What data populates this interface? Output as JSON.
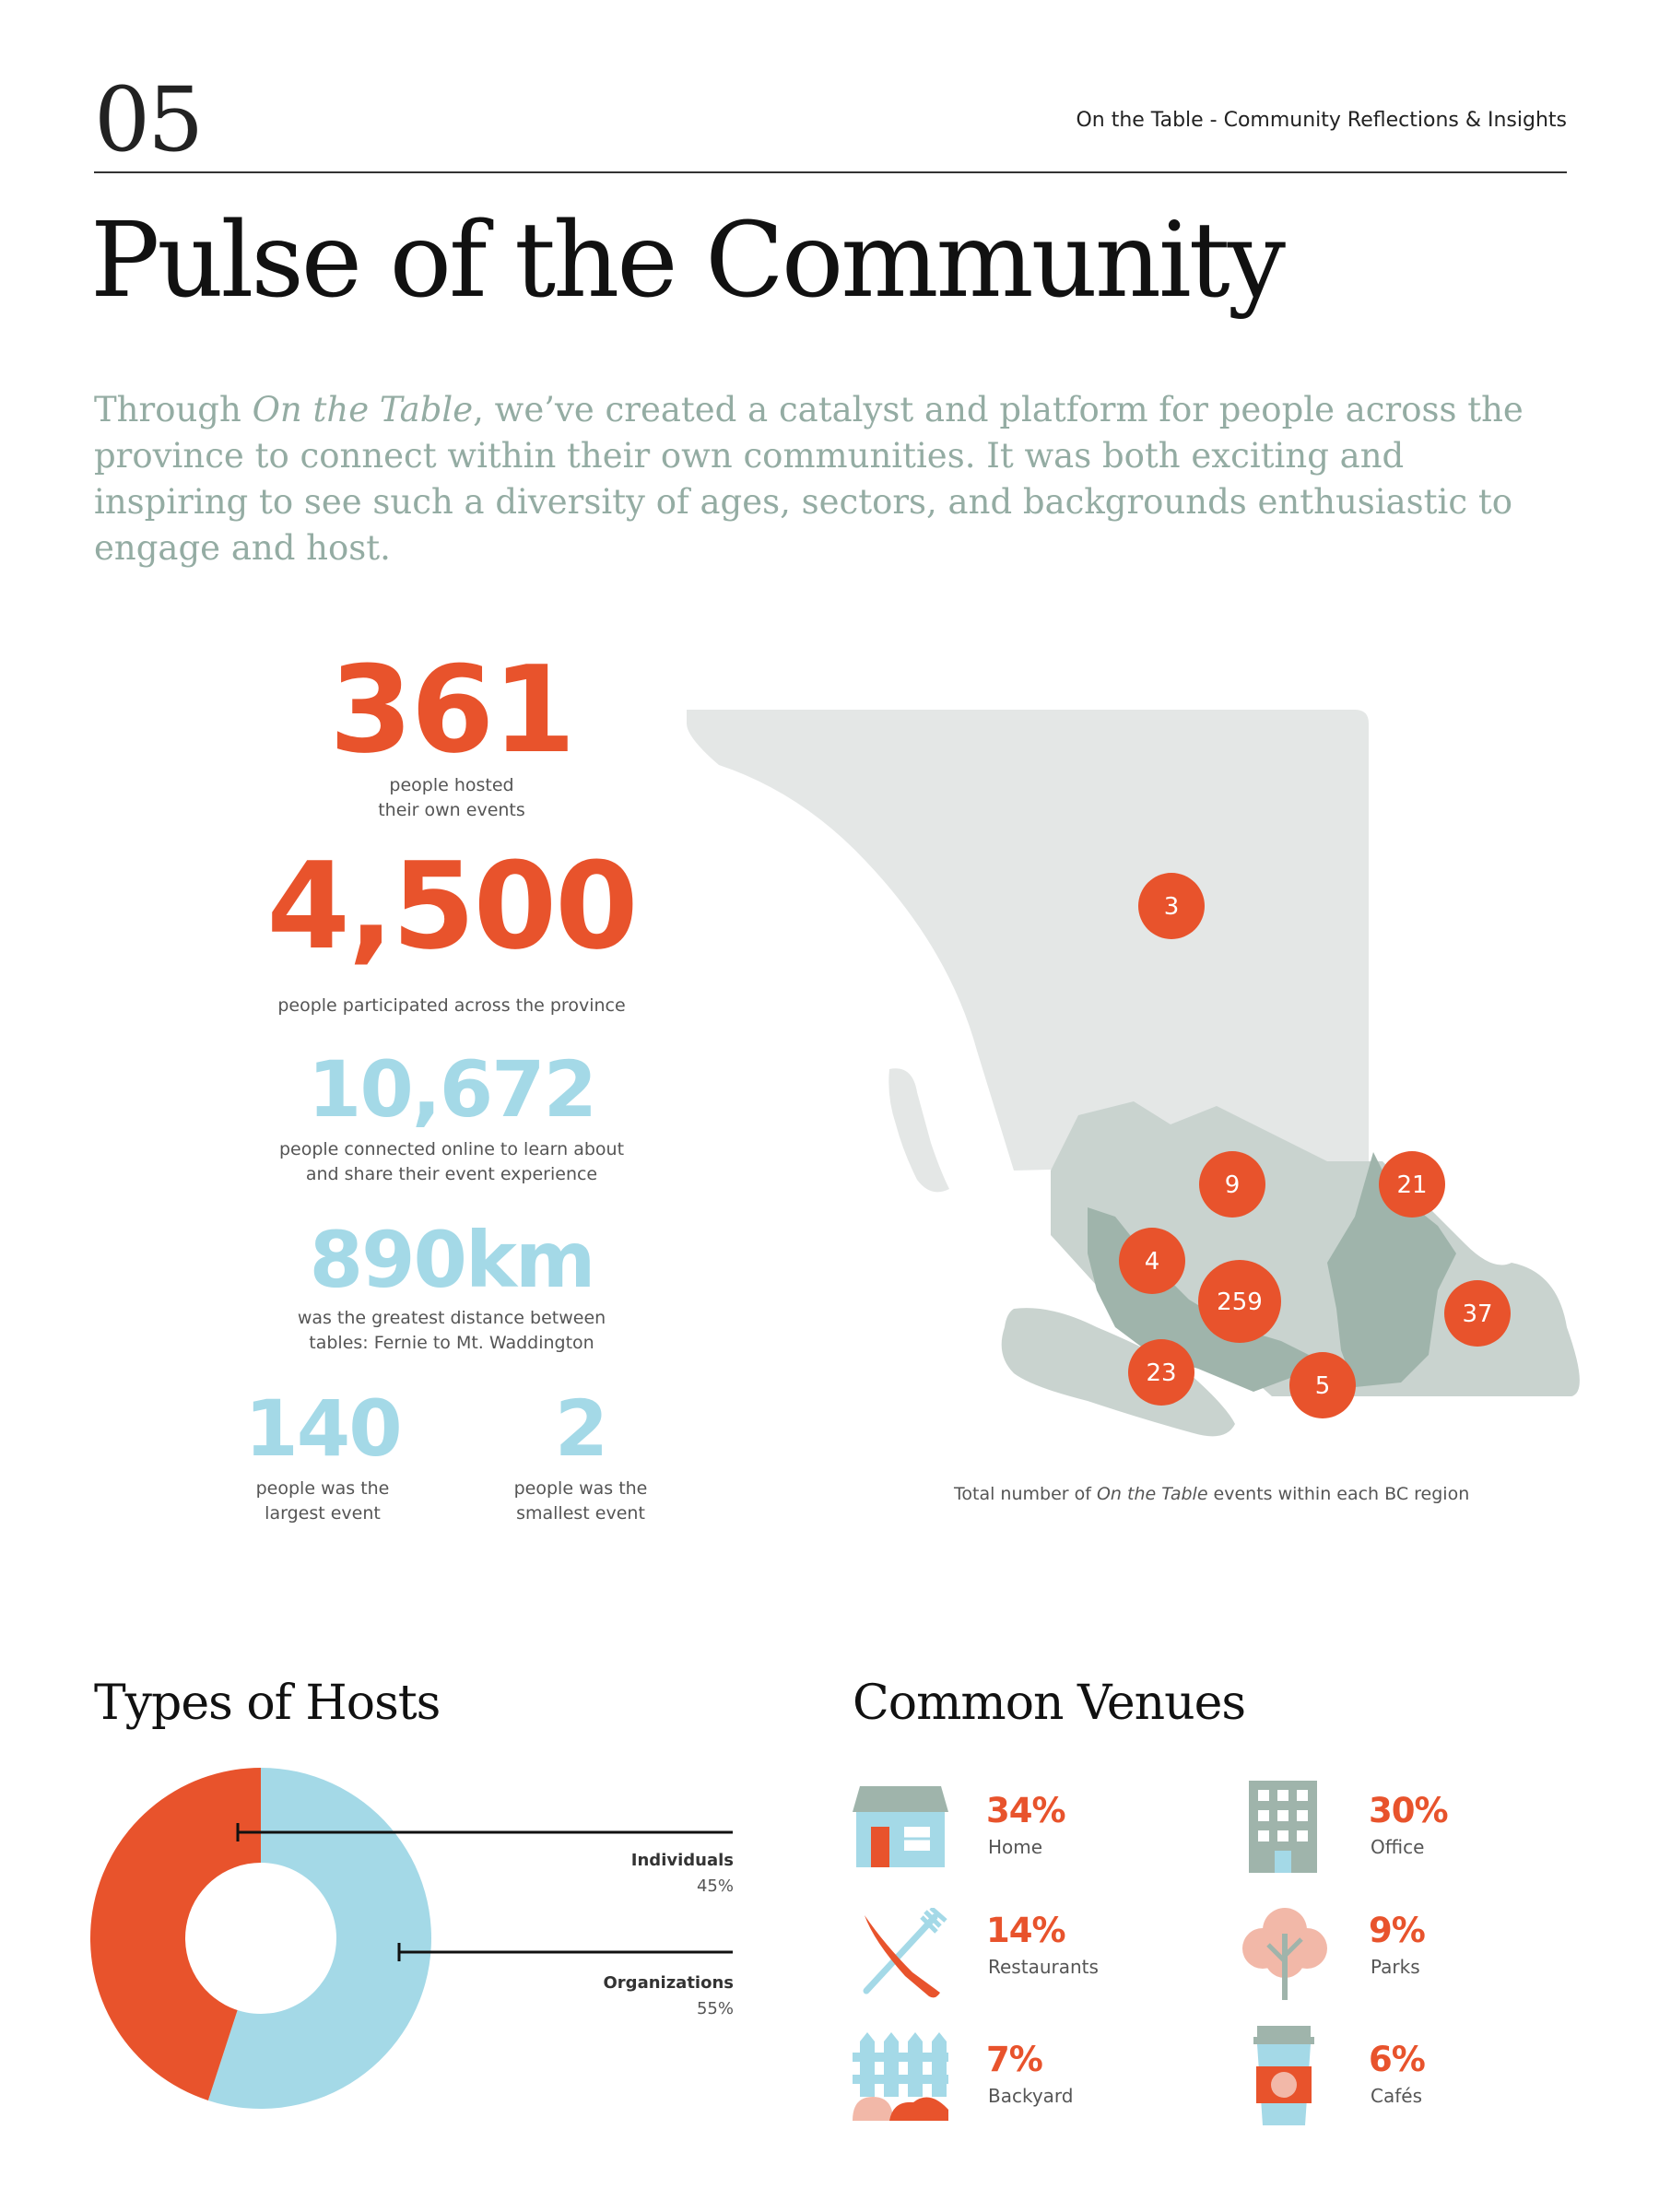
{
  "header": {
    "page_number": "05",
    "running_head": "On the Table - Community Reflections & Insights"
  },
  "title": "Pulse of the Community",
  "intro": {
    "before": "Through ",
    "italic": "On the Table",
    "after": ", we’ve created a catalyst and platform for people across the province to connect within their own communities. It was both exciting and inspiring to see such a diversity of ages, sectors, and backgrounds enthusiastic to engage and host."
  },
  "stats": {
    "hosted": {
      "value": "361",
      "label_line1": "people hosted",
      "label_line2": "their own events"
    },
    "participated": {
      "value": "4,500",
      "label_line1": "people participated across the province"
    },
    "online": {
      "value": "10,672",
      "label_line1": "people connected online to learn about",
      "label_line2": "and share their event experience"
    },
    "distance": {
      "value": "890km",
      "label_line1": "was the greatest distance between",
      "label_line2": "tables: Fernie to Mt. Waddington"
    },
    "largest": {
      "value": "140",
      "label_line1": "people was the",
      "label_line2": "largest event"
    },
    "smallest": {
      "value": "2",
      "label_line1": "people was the",
      "label_line2": "smallest event"
    }
  },
  "map": {
    "caption_before": "Total number of ",
    "caption_italic": "On the Table",
    "caption_after": " events within each BC region",
    "regions": [
      "3",
      "9",
      "21",
      "4",
      "259",
      "37",
      "23",
      "5"
    ]
  },
  "hosts": {
    "heading": "Types of Hosts",
    "segments": [
      {
        "name": "Individuals",
        "pct": "45%",
        "value": 45,
        "color": "#e8532c"
      },
      {
        "name": "Organizations",
        "pct": "55%",
        "value": 55,
        "color": "#a4d9e7"
      }
    ]
  },
  "venues": {
    "heading": "Common Venues",
    "items": [
      {
        "pct": "34%",
        "name": "Home",
        "icon": "house-icon"
      },
      {
        "pct": "30%",
        "name": "Office",
        "icon": "office-building-icon"
      },
      {
        "pct": "14%",
        "name": "Restaurants",
        "icon": "knife-fork-icon"
      },
      {
        "pct": "9%",
        "name": "Parks",
        "icon": "tree-icon"
      },
      {
        "pct": "7%",
        "name": "Backyard",
        "icon": "fence-icon"
      },
      {
        "pct": "6%",
        "name": "Cafés",
        "icon": "coffee-cup-icon"
      }
    ]
  },
  "colors": {
    "accent_orange": "#e8532c",
    "accent_blue": "#a4d9e7",
    "map_light": "#e4e7e6",
    "map_mid": "#c9d3cf",
    "map_dark": "#9fb4ab",
    "intro_text": "#94aca3"
  }
}
